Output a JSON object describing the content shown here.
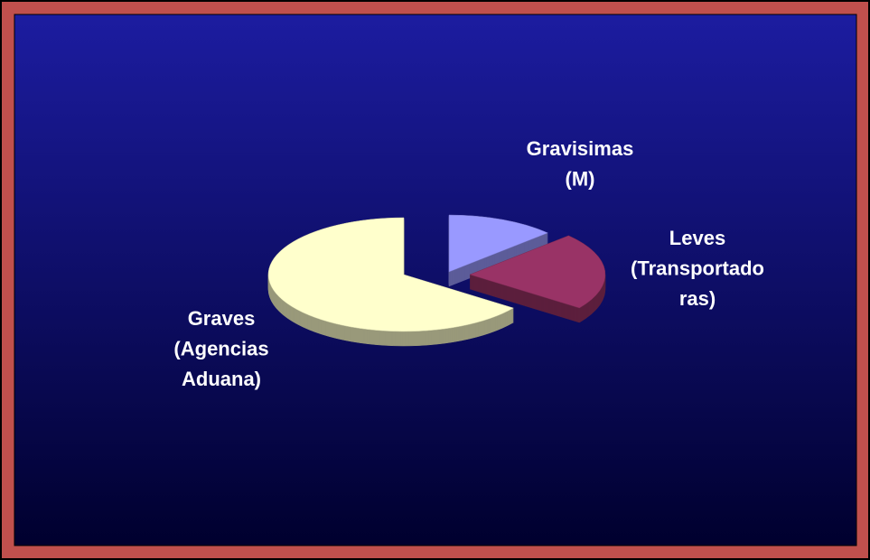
{
  "chart_data": {
    "type": "pie",
    "categories": [
      [
        "Gravisimas",
        "(M)"
      ],
      [
        "Leves",
        "(Transportado",
        "ras)"
      ],
      [
        "Graves",
        "(Agencias",
        "Aduana)"
      ]
    ],
    "values": [
      13,
      22,
      65
    ],
    "colors": [
      "#9999ff",
      "#993366",
      "#ffffcc"
    ]
  }
}
